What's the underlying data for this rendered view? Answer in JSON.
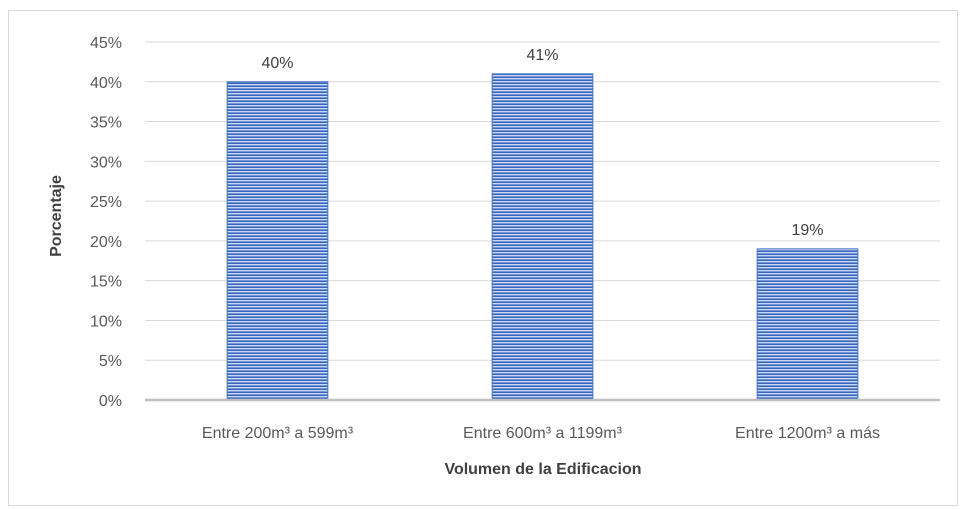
{
  "chart_data": {
    "type": "bar",
    "categories": [
      "Entre 200m³ a 599m³",
      "Entre 600m³ a 1199m³",
      "Entre 1200m³ a más"
    ],
    "values": [
      40,
      41,
      19
    ],
    "data_labels": [
      "40%",
      "41%",
      "19%"
    ],
    "xlabel": "Volumen de la Edificacion",
    "ylabel": "Porcentaje",
    "ylim": [
      0,
      45
    ],
    "y_ticks": [
      0,
      5,
      10,
      15,
      20,
      25,
      30,
      35,
      40,
      45
    ],
    "y_tick_labels": [
      "0%",
      "5%",
      "10%",
      "15%",
      "20%",
      "25%",
      "30%",
      "35%",
      "40%",
      "45%"
    ],
    "grid": true,
    "legend": "none",
    "bar_color": "#4472c4",
    "bar_pattern": "horizontal-stripes"
  }
}
